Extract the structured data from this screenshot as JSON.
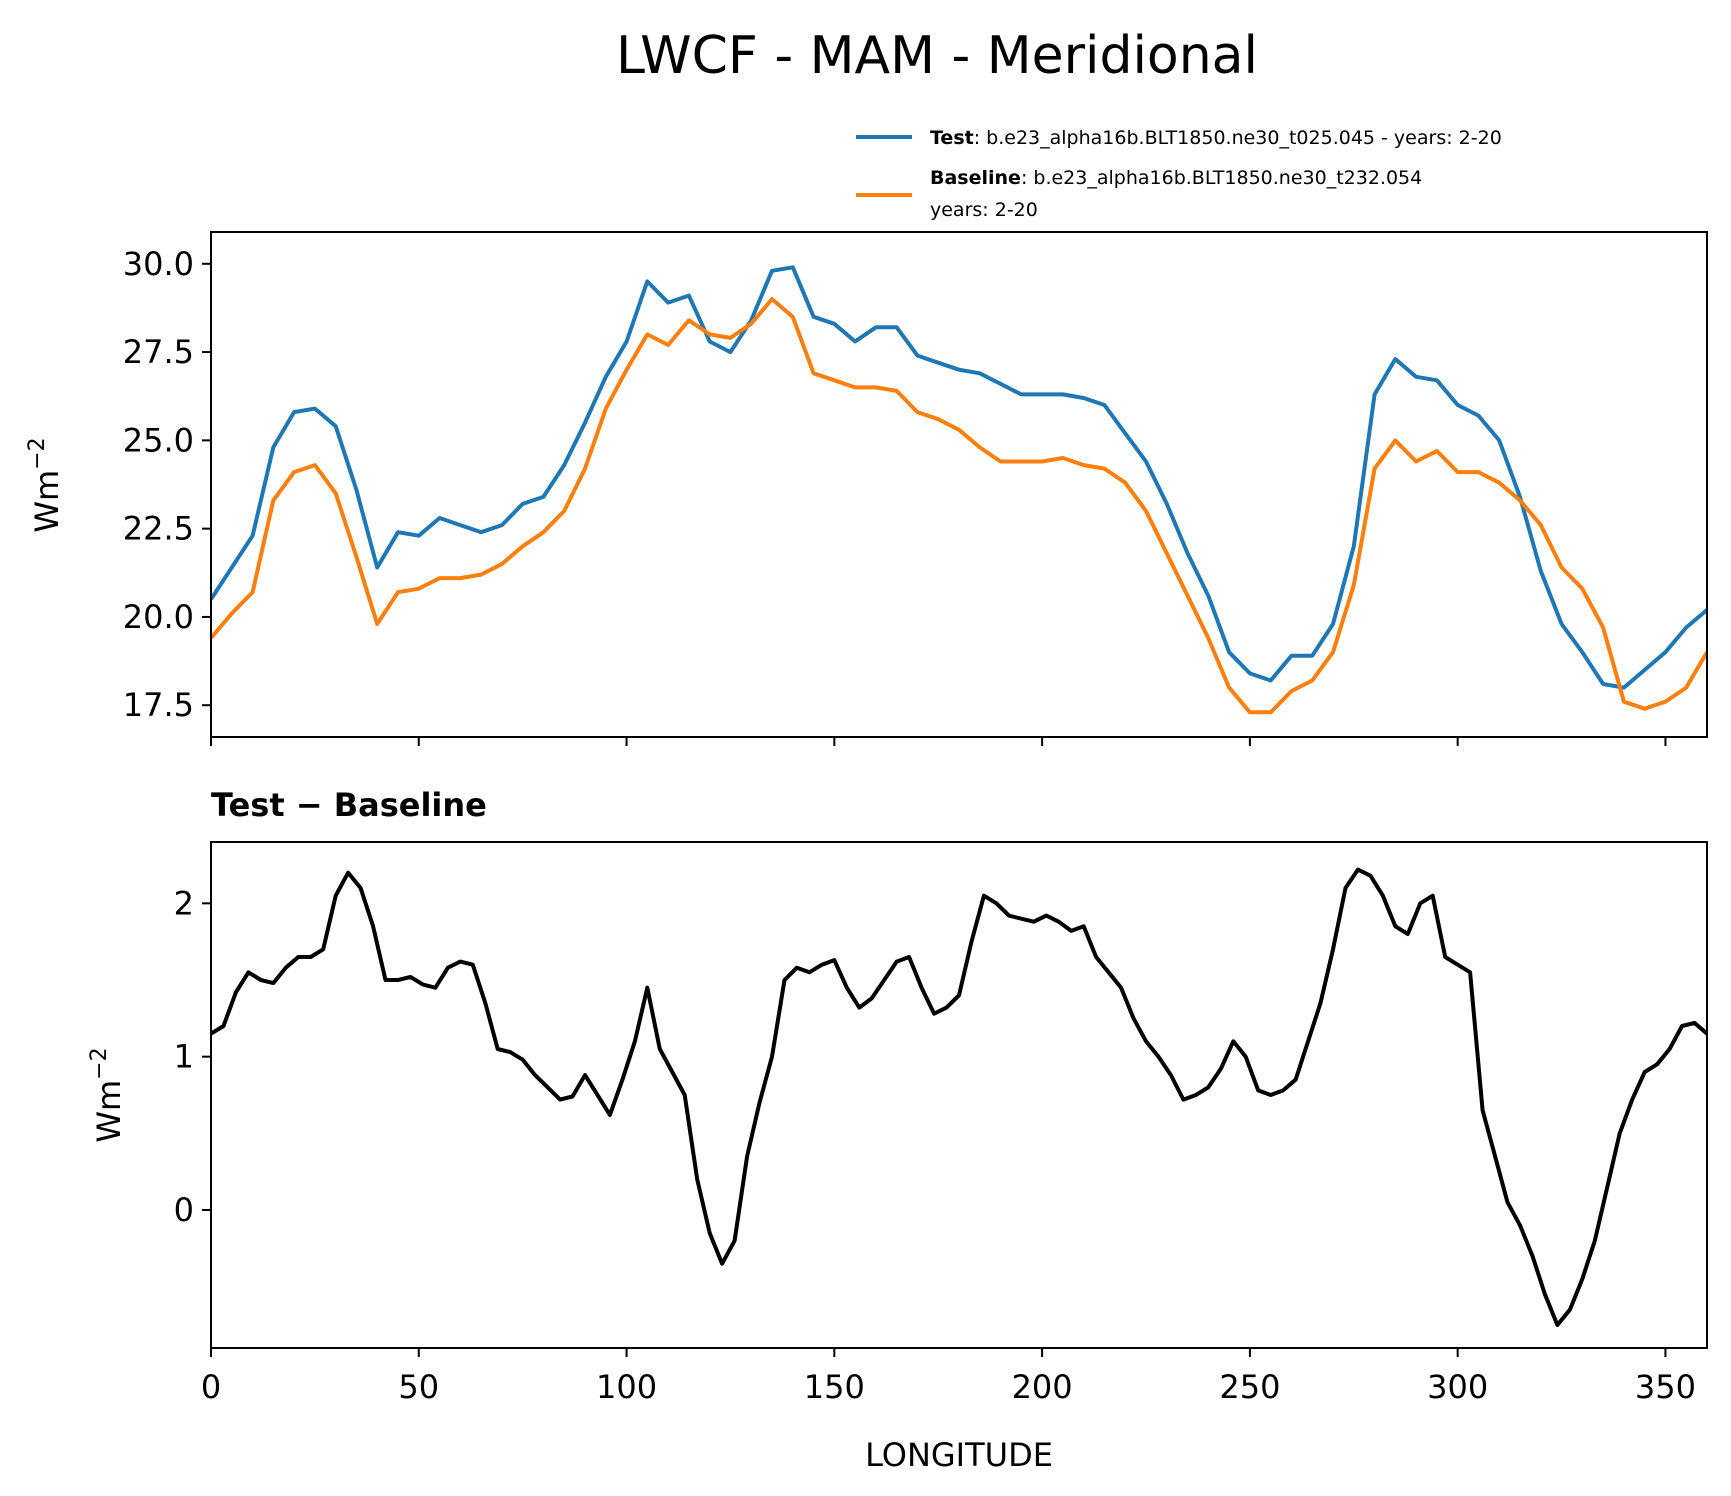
{
  "chart_data": [
    {
      "type": "line",
      "title": "LWCF - MAM - Meridional",
      "xlabel": "",
      "ylabel": "Wm",
      "ylabel_sup": "−2",
      "xlim": [
        0,
        360
      ],
      "ylim": [
        16.6,
        30.9
      ],
      "yticks": [
        "17.5",
        "20.0",
        "22.5",
        "25.0",
        "27.5",
        "30.0"
      ],
      "ytick_values": [
        17.5,
        20.0,
        22.5,
        25.0,
        27.5,
        30.0
      ],
      "xtick_values": [
        0,
        50,
        100,
        150,
        200,
        250,
        300,
        350
      ],
      "legend": {
        "test_name": "Test",
        "test_desc": ": b.e23_alpha16b.BLT1850.ne30_t025.045 - years: 2-20",
        "baseline_name": "Baseline",
        "baseline_desc": ": b.e23_alpha16b.BLT1850.ne30_t232.054",
        "baseline_years": "years: 2-20"
      },
      "colors": {
        "test": "#1f77b4",
        "baseline": "#ff7f0e"
      },
      "x": [
        0,
        5,
        10,
        15,
        20,
        25,
        30,
        35,
        40,
        45,
        50,
        55,
        60,
        65,
        70,
        75,
        80,
        85,
        90,
        95,
        100,
        105,
        110,
        115,
        120,
        125,
        130,
        135,
        140,
        145,
        150,
        155,
        160,
        165,
        170,
        175,
        180,
        185,
        190,
        195,
        200,
        205,
        210,
        215,
        220,
        225,
        230,
        235,
        240,
        245,
        250,
        255,
        260,
        265,
        270,
        275,
        280,
        285,
        290,
        295,
        300,
        305,
        310,
        315,
        320,
        325,
        330,
        335,
        340,
        345,
        350,
        355,
        360
      ],
      "series": [
        {
          "name": "Test",
          "values": [
            20.5,
            21.4,
            22.3,
            24.8,
            25.8,
            25.9,
            25.4,
            23.6,
            21.4,
            22.4,
            22.3,
            22.8,
            22.6,
            22.4,
            22.6,
            23.2,
            23.4,
            24.3,
            25.5,
            26.8,
            27.8,
            29.5,
            28.9,
            29.1,
            27.8,
            27.5,
            28.4,
            29.8,
            29.9,
            28.5,
            28.3,
            27.8,
            28.2,
            28.2,
            27.4,
            27.2,
            27.0,
            26.9,
            26.6,
            26.3,
            26.3,
            26.3,
            26.2,
            26.0,
            25.2,
            24.4,
            23.2,
            21.8,
            20.6,
            19.0,
            18.4,
            18.2,
            18.9,
            18.9,
            19.8,
            22.0,
            26.3,
            27.3,
            26.8,
            26.7,
            26.0,
            25.7,
            25.0,
            23.4,
            21.3,
            19.8,
            19.0,
            18.1,
            18.0,
            18.5,
            19.0,
            19.7,
            20.2
          ]
        },
        {
          "name": "Baseline",
          "values": [
            19.4,
            20.1,
            20.7,
            23.3,
            24.1,
            24.3,
            23.5,
            21.7,
            19.8,
            20.7,
            20.8,
            21.1,
            21.1,
            21.2,
            21.5,
            22.0,
            22.4,
            23.0,
            24.2,
            25.9,
            27.0,
            28.0,
            27.7,
            28.4,
            28.0,
            27.9,
            28.3,
            29.0,
            28.5,
            26.9,
            26.7,
            26.5,
            26.5,
            26.4,
            25.8,
            25.6,
            25.3,
            24.8,
            24.4,
            24.4,
            24.4,
            24.5,
            24.3,
            24.2,
            23.8,
            23.0,
            21.8,
            20.6,
            19.4,
            18.0,
            17.3,
            17.3,
            17.9,
            18.2,
            19.0,
            20.9,
            24.2,
            25.0,
            24.4,
            24.7,
            24.1,
            24.1,
            23.8,
            23.3,
            22.6,
            21.4,
            20.8,
            19.7,
            17.6,
            17.4,
            17.6,
            18.0,
            19.0
          ]
        }
      ]
    },
    {
      "type": "line",
      "title": "Test − Baseline",
      "xlabel": "LONGITUDE",
      "ylabel": "Wm",
      "ylabel_sup": "−2",
      "xlim": [
        0,
        360
      ],
      "ylim": [
        -0.9,
        2.4
      ],
      "yticks": [
        "0",
        "1",
        "2"
      ],
      "ytick_values": [
        0,
        1,
        2
      ],
      "xticks": [
        "0",
        "50",
        "100",
        "150",
        "200",
        "250",
        "300",
        "350"
      ],
      "xtick_values": [
        0,
        50,
        100,
        150,
        200,
        250,
        300,
        350
      ],
      "colors": {
        "diff": "#000000"
      },
      "x": [
        0,
        3,
        6,
        9,
        12,
        15,
        18,
        21,
        24,
        27,
        30,
        33,
        36,
        39,
        42,
        45,
        48,
        51,
        54,
        57,
        60,
        63,
        66,
        69,
        72,
        75,
        78,
        81,
        84,
        87,
        90,
        93,
        96,
        99,
        102,
        105,
        108,
        111,
        114,
        117,
        120,
        123,
        126,
        129,
        132,
        135,
        138,
        141,
        144,
        147,
        150,
        153,
        156,
        159,
        162,
        165,
        168,
        171,
        174,
        177,
        180,
        183,
        186,
        189,
        192,
        195,
        198,
        201,
        204,
        207,
        210,
        213,
        216,
        219,
        222,
        225,
        228,
        231,
        234,
        237,
        240,
        243,
        246,
        249,
        252,
        255,
        258,
        261,
        264,
        267,
        270,
        273,
        276,
        279,
        282,
        285,
        288,
        291,
        294,
        297,
        300,
        303,
        306,
        309,
        312,
        315,
        318,
        321,
        324,
        327,
        330,
        333,
        336,
        339,
        342,
        345,
        348,
        351,
        354,
        357,
        360
      ],
      "series": [
        {
          "name": "Test − Baseline",
          "values": [
            1.15,
            1.2,
            1.42,
            1.55,
            1.5,
            1.48,
            1.58,
            1.65,
            1.65,
            1.7,
            2.05,
            2.2,
            2.1,
            1.85,
            1.5,
            1.5,
            1.52,
            1.47,
            1.45,
            1.58,
            1.62,
            1.6,
            1.35,
            1.05,
            1.03,
            0.98,
            0.88,
            0.8,
            0.72,
            0.74,
            0.88,
            0.75,
            0.62,
            0.85,
            1.1,
            1.45,
            1.05,
            0.9,
            0.75,
            0.2,
            -0.15,
            -0.35,
            -0.2,
            0.35,
            0.7,
            1.0,
            1.5,
            1.58,
            1.55,
            1.6,
            1.63,
            1.45,
            1.32,
            1.38,
            1.5,
            1.62,
            1.65,
            1.45,
            1.28,
            1.32,
            1.4,
            1.75,
            2.05,
            2.0,
            1.92,
            1.9,
            1.88,
            1.92,
            1.88,
            1.82,
            1.85,
            1.65,
            1.55,
            1.45,
            1.25,
            1.1,
            1.0,
            0.88,
            0.72,
            0.75,
            0.8,
            0.92,
            1.1,
            1.0,
            0.78,
            0.75,
            0.78,
            0.85,
            1.1,
            1.35,
            1.7,
            2.1,
            2.22,
            2.18,
            2.05,
            1.85,
            1.8,
            2.0,
            2.05,
            1.65,
            1.6,
            1.55,
            0.65,
            0.35,
            0.05,
            -0.1,
            -0.3,
            -0.55,
            -0.75,
            -0.65,
            -0.45,
            -0.2,
            0.15,
            0.5,
            0.72,
            0.9,
            0.95,
            1.05,
            1.2,
            1.22,
            1.15
          ]
        }
      ]
    }
  ]
}
